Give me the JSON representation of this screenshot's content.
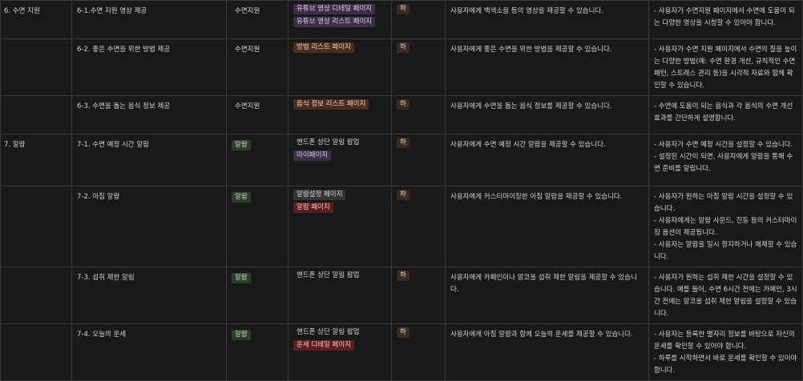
{
  "rows": [
    {
      "category": "6. 수면 지원",
      "feature": "6-1.수면 지원 영상 제공",
      "group": {
        "label": "수면지원",
        "style": "sleep"
      },
      "pages": [
        {
          "label": "유튜브 영상 디테일 페이지",
          "style": "purple"
        },
        {
          "label": "유튜브 영상 리스트 페이지",
          "style": "purple"
        }
      ],
      "priority": "하",
      "description": "사용자에게 백색소음 등의 영상을 제공할 수 있습니다.",
      "details": [
        "- 사용자가 수면지원 페이지에서 수면에 도움이 되는 다양한 영상을 시청할 수 있어야 합니다."
      ]
    },
    {
      "category": "",
      "feature": "6-2. 좋은 수면을 위한 방법 제공",
      "group": {
        "label": "수면지원",
        "style": "sleep"
      },
      "pages": [
        {
          "label": "방법 리스트 페이지",
          "style": "brown"
        }
      ],
      "priority": "하",
      "description": "사용자에게 좋은 수면을 위한 방법을 제공할 수 있습니다.",
      "details": [
        "- 사용자가 수면 지원 페이지에서 수면의 질을 높이는 다양한 방법(예: 수면 환경 개선, 규칙적인 수면 패턴, 스트레스 관리 등)을 시각적 자료와 함께 확인할 수 있습니다."
      ]
    },
    {
      "category": "",
      "feature": "6-3. 수면을 돕는 음식 정보 제공",
      "group": {
        "label": "수면지원",
        "style": "sleep"
      },
      "pages": [
        {
          "label": "음식 정보 리스트 페이지",
          "style": "brown"
        }
      ],
      "priority": "하",
      "description": "사용자에게 수면을 돕는 음식 정보를 제공할 수 있습니다.",
      "details": [
        "- 수면에 도움이 되는 음식과 각 음식의 수면 개선 효과를 간단하게 설명합니다."
      ]
    },
    {
      "category": "7. 알람",
      "feature": "7-1. 수면 예정 시간 알람",
      "group": {
        "label": "알람",
        "style": "alarm"
      },
      "pages": [
        {
          "label": "핸드폰 상단 알림 팝업",
          "style": "plain"
        },
        {
          "label": "마이페이지",
          "style": "purple"
        }
      ],
      "priority": "하",
      "description": "사용자에게 수면 예정 시간 알람을 제공할 수 있습니다.",
      "details": [
        "- 사용자가 수면 예정 시간을 설정할 수 있습니다.",
        "- 설정된 시간이 되면, 사용자에게 알람을 통해 수면 준비를 알립니다."
      ]
    },
    {
      "category": "",
      "feature": "7-2. 아침 알람",
      "group": {
        "label": "알람",
        "style": "alarm"
      },
      "pages": [
        {
          "label": "알람설정 페이지",
          "style": "gray"
        },
        {
          "label": "알람 페이지",
          "style": "red"
        }
      ],
      "priority": "하",
      "description": "사용자에게 커스터마이징한 아침 알람을 제공할 수 있습니다.",
      "details": [
        "- 사용자가 원하는 아침 알람 시간을 설정할 수 있습니다.",
        "- 사용자에게는 알람 사운드, 진동 등의 커스터마이징 옵션이 제공됩니다.",
        "- 사용자는 알람을 일시 정지하거나 해제할 수 있습니다."
      ]
    },
    {
      "category": "",
      "feature": "7-3. 섭취 제한 알림",
      "group": {
        "label": "알람",
        "style": "alarm"
      },
      "pages": [
        {
          "label": "핸드폰 상단 알림 팝업",
          "style": "plain"
        }
      ],
      "priority": "하",
      "description": "사용자에게 카페인이나 알코올 섭취 제한 알림을 제공할 수 있습니다.",
      "details": [
        "- 사용자가 원하는 섭취 제한 시간을 설정할 수 있습니다. 예를 들어, 수면 6시간 전에는 카페인, 3시간 전에는 알코올 섭취 제한 알림을 설정할 수 있습니다."
      ]
    },
    {
      "category": "",
      "feature": "7-4. 오늘의 운세",
      "group": {
        "label": "알람",
        "style": "alarm"
      },
      "pages": [
        {
          "label": "핸드폰 상단 알림 팝업",
          "style": "plain"
        },
        {
          "label": "운세 디테일 페이지",
          "style": "red"
        }
      ],
      "priority": "하",
      "description": "사용자에게 아침 알람과 함께 오늘의 운세를 제공할 수 있습니다.",
      "details": [
        "- 사용자는 등록한 별자리 정보를 바탕으로 자신의 운세를 확인할 수 있어야 합니다.",
        "- 하루를 시작하면서 바로 운세를 확인할 수 있어야 합니다."
      ]
    }
  ]
}
